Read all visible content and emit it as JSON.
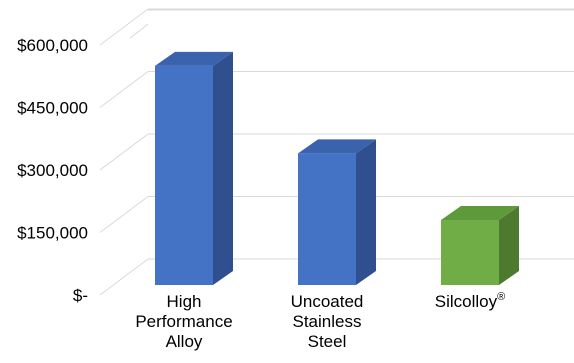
{
  "chart_data": {
    "type": "bar",
    "style": "3d",
    "categories": [
      [
        "High",
        "Performance",
        "Alloy"
      ],
      [
        "Uncoated",
        "Stainless",
        "Steel"
      ],
      [
        "Silcolloy®"
      ]
    ],
    "values": [
      550000,
      340000,
      180000
    ],
    "bar_colors": [
      "#4472C4",
      "#4472C4",
      "#70AD47"
    ],
    "bar_side_colors": [
      "#2F4F8F",
      "#2F4F8F",
      "#4E7A2F"
    ],
    "bar_top_colors": [
      "#3A62AD",
      "#3A62AD",
      "#5E9A3A"
    ],
    "y_ticks": [
      0,
      150000,
      300000,
      450000,
      600000
    ],
    "y_tick_labels": [
      "$-",
      "$150,000",
      "$300,000",
      "$450,000",
      "$600,000"
    ],
    "ylim": [
      0,
      650000
    ],
    "grid": true,
    "grid_color": "#D9D9D9",
    "title": "",
    "xlabel": "",
    "ylabel": ""
  }
}
